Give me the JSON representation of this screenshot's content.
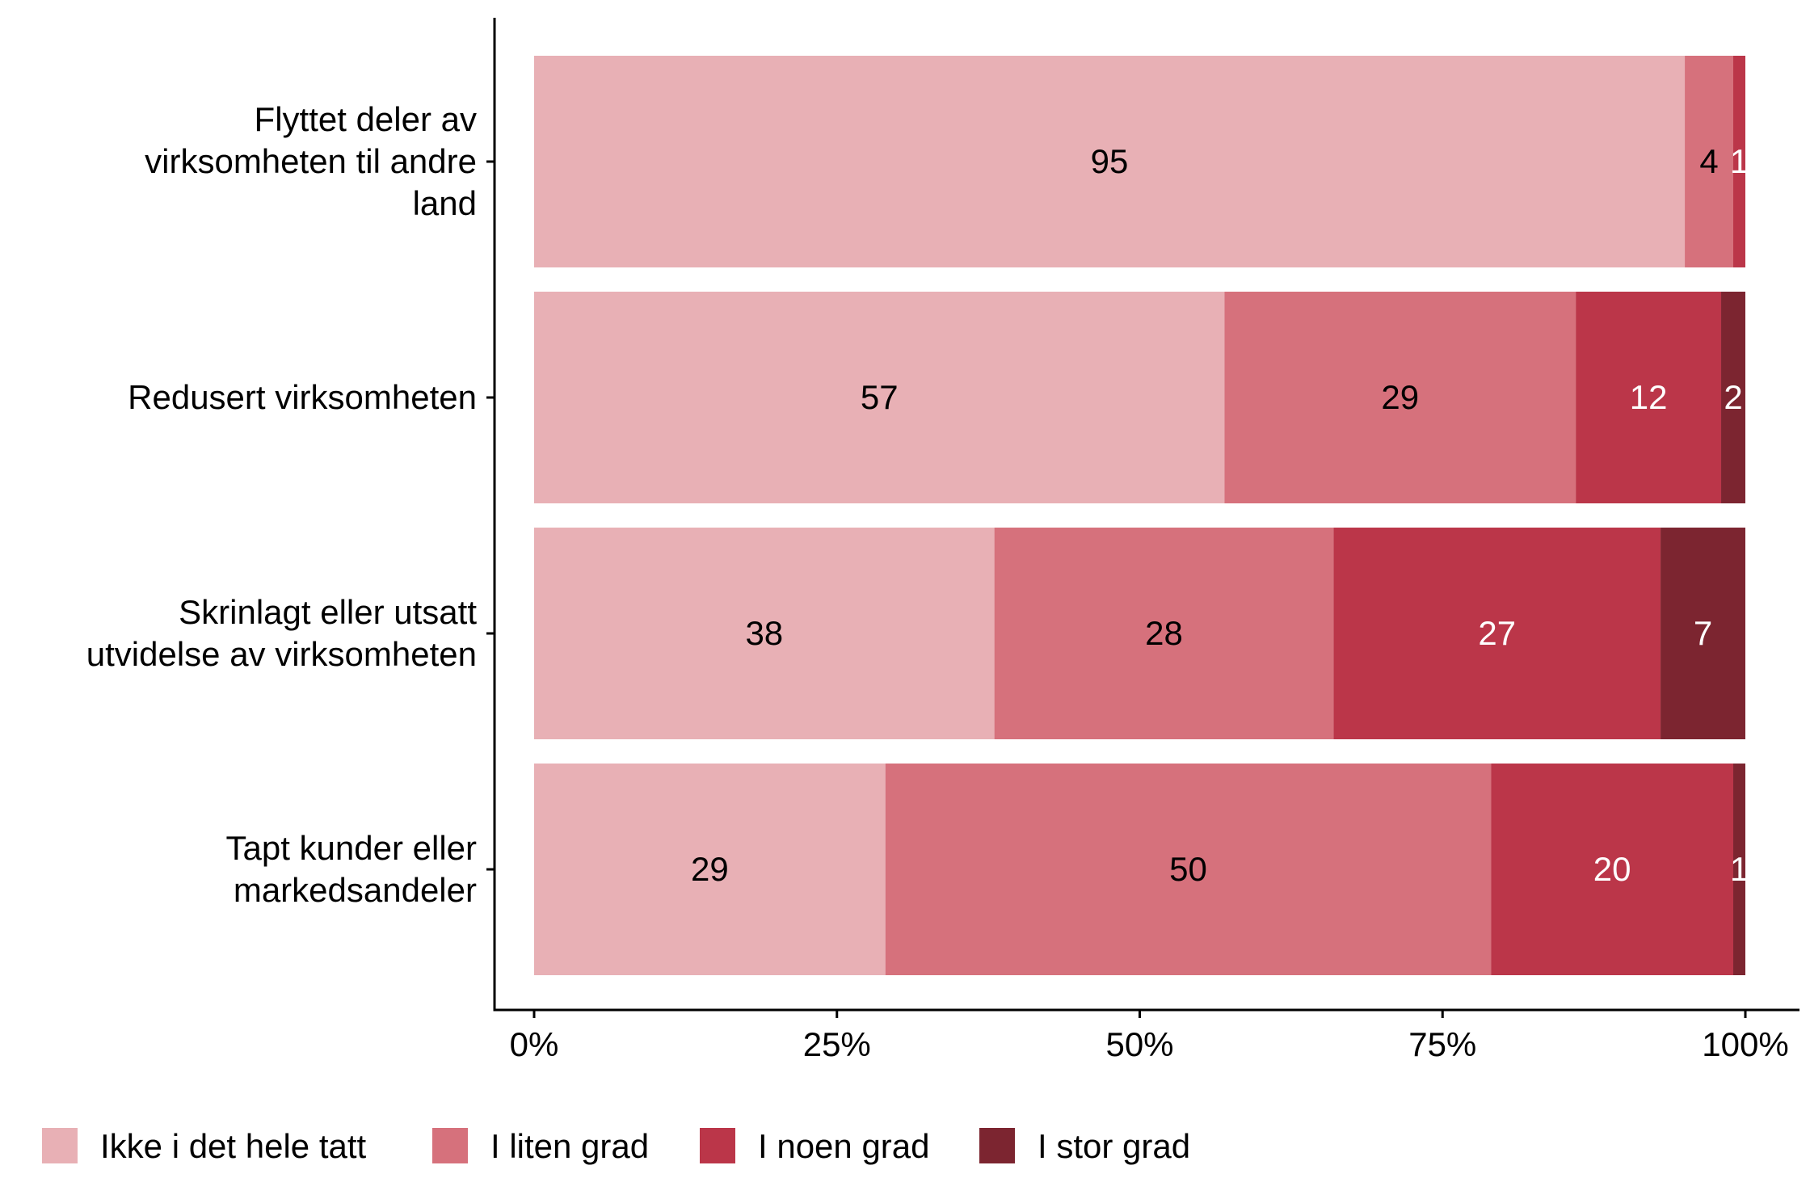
{
  "chart_data": {
    "type": "bar",
    "orientation": "horizontal",
    "stacked": true,
    "categories": [
      [
        "Flyttet deler av",
        "virksomheten til andre",
        "land"
      ],
      [
        "Redusert virksomheten"
      ],
      [
        "Skrinlagt eller utsatt",
        "utvidelse av virksomheten"
      ],
      [
        "Tapt kunder eller",
        "markedsandeler"
      ]
    ],
    "series": [
      {
        "name": "Ikke i det hele tatt",
        "color": "#e8b0b5",
        "label_color": "#000000",
        "values": [
          95,
          57,
          38,
          29
        ]
      },
      {
        "name": "I liten grad",
        "color": "#d6717c",
        "label_color": "#000000",
        "values": [
          4,
          29,
          28,
          50
        ]
      },
      {
        "name": "I noen grad",
        "color": "#bb3649",
        "label_color": "#ffffff",
        "values": [
          1,
          12,
          27,
          20
        ]
      },
      {
        "name": "I stor grad",
        "color": "#7c2530",
        "label_color": "#ffffff",
        "values": [
          0,
          2,
          7,
          1
        ]
      }
    ],
    "xlim": [
      0,
      100
    ],
    "xticks": [
      "0%",
      "25%",
      "50%",
      "75%",
      "100%"
    ],
    "xlabel": "",
    "ylabel": "",
    "title": "",
    "legend_position": "bottom",
    "grid": false
  }
}
